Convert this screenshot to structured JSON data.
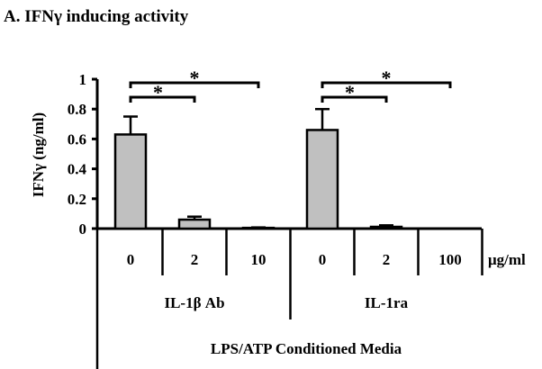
{
  "chart_data": {
    "type": "bar",
    "title": "A. IFNγ inducing activity",
    "ylabel": "IFNγ (ng/ml)",
    "ylim": [
      0,
      1
    ],
    "yticks": [
      "0",
      "0.2",
      "0.4",
      "0.6",
      "0.8",
      "1"
    ],
    "unit_label": "μg/ml",
    "categories": [
      "0",
      "2",
      "10",
      "0",
      "2",
      "100"
    ],
    "values": [
      0.63,
      0.06,
      0.005,
      0.66,
      0.012,
      0.0
    ],
    "errors": [
      0.12,
      0.02,
      0.003,
      0.14,
      0.01,
      0.0
    ],
    "groups": [
      {
        "label": "IL-1β Ab",
        "indices": [
          0,
          1,
          2
        ]
      },
      {
        "label": "IL-1ra",
        "indices": [
          3,
          4,
          5
        ]
      }
    ],
    "xlabel": "LPS/ATP Conditioned Media",
    "significance": [
      {
        "from": 0,
        "to": 1,
        "label": "*"
      },
      {
        "from": 0,
        "to": 2,
        "label": "*"
      },
      {
        "from": 3,
        "to": 4,
        "label": "*"
      },
      {
        "from": 3,
        "to": 5,
        "label": "*"
      }
    ],
    "bar_color": "#c0c0c0",
    "grid": false
  }
}
